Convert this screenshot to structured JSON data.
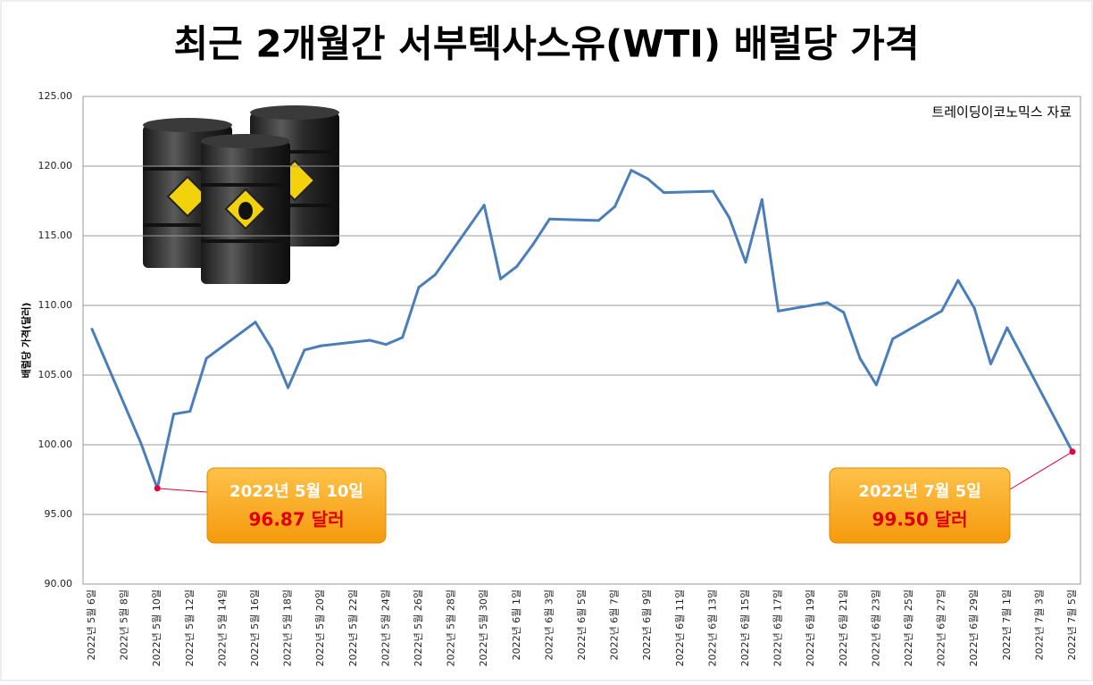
{
  "chart_data": {
    "type": "line",
    "title": "최근 2개월간 서부텍사스유(WTI) 배럴당 가격",
    "y_label": "배럴당 가격(달러)",
    "source": "트레이딩이코노믹스 자료",
    "categories": [
      "2022년 5월 6일",
      null,
      "2022년 5월 8일",
      null,
      "2022년 5월 10일",
      null,
      "2022년 5월 12일",
      null,
      "2022년 5월 14일",
      null,
      "2022년 5월 16일",
      null,
      "2022년 5월 18일",
      null,
      "2022년 5월 20일",
      null,
      "2022년 5월 22일",
      null,
      "2022년 5월 24일",
      null,
      "2022년 5월 26일",
      null,
      "2022년 5월 28일",
      null,
      "2022년 5월 30일",
      null,
      "2022년 6월 1일",
      null,
      "2022년 6월 3일",
      null,
      "2022년 6월 5일",
      null,
      "2022년 6월 7일",
      null,
      "2022년 6월 9일",
      null,
      "2022년 6월 11일",
      null,
      "2022년 6월 13일",
      null,
      "2022년 6월 15일",
      null,
      "2022년 6월 17일",
      null,
      "2022년 6월 19일",
      null,
      "2022년 6월 21일",
      null,
      "2022년 6월 23일",
      null,
      "2022년 6월 25일",
      null,
      "2022년 6월 27일",
      null,
      "2022년 6월 29일",
      null,
      "2022년 7월 1일",
      null,
      "2022년 7월 3일",
      null,
      "2022년 7월 5일"
    ],
    "series": [
      {
        "name": "WTI",
        "color": "#4a7ebb",
        "values": [
          108.3,
          null,
          null,
          100.1,
          96.87,
          102.2,
          102.4,
          106.2,
          null,
          null,
          108.8,
          106.9,
          104.1,
          106.8,
          107.1,
          null,
          null,
          107.5,
          107.2,
          107.7,
          111.3,
          112.2,
          null,
          null,
          117.2,
          111.9,
          112.8,
          114.4,
          116.2,
          null,
          null,
          116.1,
          117.1,
          119.7,
          119.1,
          118.1,
          null,
          null,
          118.2,
          116.3,
          113.1,
          117.6,
          109.6,
          null,
          null,
          110.2,
          109.5,
          106.2,
          104.3,
          107.6,
          null,
          null,
          109.6,
          111.8,
          109.8,
          105.8,
          108.4,
          null,
          null,
          null,
          99.5
        ]
      }
    ],
    "ylim": [
      90,
      125
    ],
    "yticks": [
      {
        "value": 90,
        "label": "90.00"
      },
      {
        "value": 95,
        "label": "95.00"
      },
      {
        "value": 100,
        "label": "100.00"
      },
      {
        "value": 105,
        "label": "105.00"
      },
      {
        "value": 110,
        "label": "110.00"
      },
      {
        "value": 115,
        "label": "115.00"
      },
      {
        "value": 120,
        "label": "120.00"
      },
      {
        "value": 125,
        "label": "125.00"
      }
    ],
    "grid": true,
    "annotations": [
      {
        "x": "2022년 5월 10일",
        "text": "96.87 달러"
      },
      {
        "x": "2022년 7월 5일",
        "text": "99.50 달러"
      }
    ]
  }
}
